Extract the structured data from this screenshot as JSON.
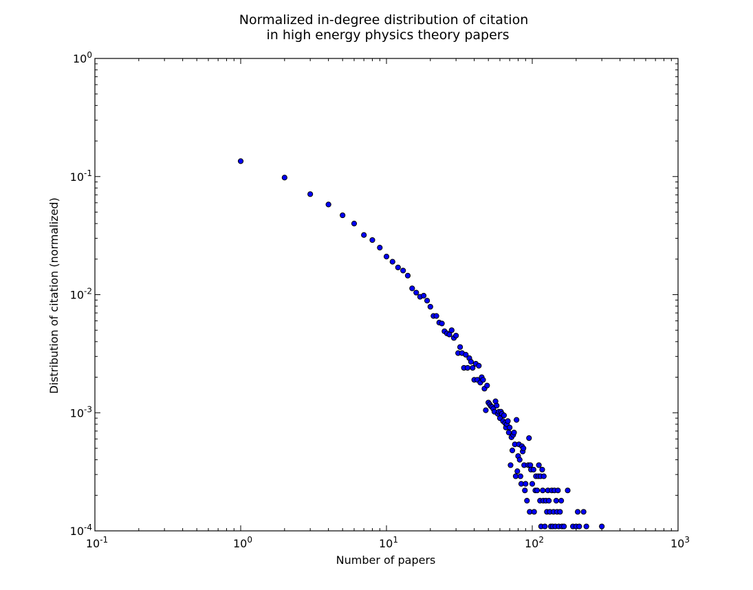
{
  "chart_data": {
    "type": "scatter",
    "title_lines": [
      "Normalized in-degree distribution of citation",
      "in high energy physics theory papers"
    ],
    "xlabel": "Number of papers",
    "ylabel": "Distribution of citation (normalized)",
    "x_scale": "log",
    "y_scale": "log",
    "xlim": [
      0.1,
      1000
    ],
    "ylim": [
      0.0001,
      1
    ],
    "x_ticks": [
      {
        "base": "10",
        "exp": "-1",
        "value": 0.1
      },
      {
        "base": "10",
        "exp": "0",
        "value": 1
      },
      {
        "base": "10",
        "exp": "1",
        "value": 10
      },
      {
        "base": "10",
        "exp": "2",
        "value": 100
      },
      {
        "base": "10",
        "exp": "3",
        "value": 1000
      }
    ],
    "y_ticks": [
      {
        "base": "10",
        "exp": "-4",
        "value": 0.0001
      },
      {
        "base": "10",
        "exp": "-3",
        "value": 0.001
      },
      {
        "base": "10",
        "exp": "-2",
        "value": 0.01
      },
      {
        "base": "10",
        "exp": "-1",
        "value": 0.1
      },
      {
        "base": "10",
        "exp": "0",
        "value": 1
      }
    ],
    "grid": false,
    "marker_color": "#0000ff",
    "marker_edge": "#000000",
    "points": [
      [
        1,
        0.135
      ],
      [
        2,
        0.098
      ],
      [
        3,
        0.071
      ],
      [
        4,
        0.058
      ],
      [
        5,
        0.047
      ],
      [
        6,
        0.04
      ],
      [
        7,
        0.032
      ],
      [
        8,
        0.029
      ],
      [
        9,
        0.025
      ],
      [
        10,
        0.021
      ],
      [
        11,
        0.019
      ],
      [
        12,
        0.017
      ],
      [
        13,
        0.016
      ],
      [
        14,
        0.0145
      ],
      [
        15,
        0.0113
      ],
      [
        16,
        0.0104
      ],
      [
        17,
        0.0096
      ],
      [
        18,
        0.0098
      ],
      [
        19,
        0.0089
      ],
      [
        20,
        0.0079
      ],
      [
        21,
        0.0066
      ],
      [
        22,
        0.0066
      ],
      [
        23,
        0.0058
      ],
      [
        24,
        0.0057
      ],
      [
        25,
        0.0049
      ],
      [
        26,
        0.0047
      ],
      [
        27,
        0.0046
      ],
      [
        28,
        0.005
      ],
      [
        29,
        0.0043
      ],
      [
        30,
        0.0045
      ],
      [
        31,
        0.0032
      ],
      [
        32,
        0.0036
      ],
      [
        33,
        0.0032
      ],
      [
        34,
        0.0024
      ],
      [
        35,
        0.0031
      ],
      [
        36,
        0.0024
      ],
      [
        37,
        0.0029
      ],
      [
        38,
        0.0027
      ],
      [
        39,
        0.0024
      ],
      [
        40,
        0.0019
      ],
      [
        41,
        0.0026
      ],
      [
        42,
        0.0019
      ],
      [
        43,
        0.0025
      ],
      [
        44,
        0.0018
      ],
      [
        45,
        0.002
      ],
      [
        46,
        0.0019
      ],
      [
        47,
        0.0016
      ],
      [
        48,
        0.00105
      ],
      [
        49,
        0.0017
      ],
      [
        50,
        0.00122
      ],
      [
        51,
        0.00118
      ],
      [
        52,
        0.00114
      ],
      [
        53,
        0.00112
      ],
      [
        54,
        0.00108
      ],
      [
        55,
        0.00102
      ],
      [
        56,
        0.00125
      ],
      [
        57,
        0.00115
      ],
      [
        58,
        0.00098
      ],
      [
        59,
        0.00102
      ],
      [
        60,
        0.0009
      ],
      [
        61,
        0.00102
      ],
      [
        62,
        0.00098
      ],
      [
        63,
        0.00085
      ],
      [
        64,
        0.00095
      ],
      [
        65,
        0.00082
      ],
      [
        66,
        0.00075
      ],
      [
        67,
        0.0008
      ],
      [
        68,
        0.00085
      ],
      [
        69,
        0.00068
      ],
      [
        70,
        0.00075
      ],
      [
        71,
        0.00036
      ],
      [
        72,
        0.00062
      ],
      [
        73,
        0.00048
      ],
      [
        74,
        0.00065
      ],
      [
        75,
        0.00068
      ],
      [
        76,
        0.00054
      ],
      [
        77,
        0.00029
      ],
      [
        78,
        0.00087
      ],
      [
        79,
        0.00032
      ],
      [
        80,
        0.00043
      ],
      [
        81,
        0.00054
      ],
      [
        82,
        0.0004
      ],
      [
        83,
        0.00029
      ],
      [
        84,
        0.00025
      ],
      [
        85,
        0.00052
      ],
      [
        86,
        0.00047
      ],
      [
        87,
        0.0005
      ],
      [
        88,
        0.00036
      ],
      [
        89,
        0.00022
      ],
      [
        90,
        0.00025
      ],
      [
        92,
        0.00018
      ],
      [
        94,
        0.00036
      ],
      [
        95,
        0.00061
      ],
      [
        96,
        0.000145
      ],
      [
        97,
        0.00036
      ],
      [
        98,
        0.00033
      ],
      [
        100,
        0.00025
      ],
      [
        102,
        0.00033
      ],
      [
        103,
        0.000145
      ],
      [
        105,
        0.00022
      ],
      [
        106,
        0.00029
      ],
      [
        108,
        0.00022
      ],
      [
        110,
        0.00029
      ],
      [
        111,
        0.00036
      ],
      [
        113,
        0.00018
      ],
      [
        114,
        0.00029
      ],
      [
        115,
        0.000109
      ],
      [
        117,
        0.00033
      ],
      [
        118,
        0.00022
      ],
      [
        119,
        0.00018
      ],
      [
        120,
        0.00029
      ],
      [
        122,
        0.000109
      ],
      [
        124,
        0.00018
      ],
      [
        126,
        0.000145
      ],
      [
        128,
        0.00022
      ],
      [
        130,
        0.00018
      ],
      [
        132,
        0.000145
      ],
      [
        134,
        0.000109
      ],
      [
        136,
        0.00022
      ],
      [
        138,
        0.000109
      ],
      [
        140,
        0.000145
      ],
      [
        142,
        0.00022
      ],
      [
        144,
        0.000109
      ],
      [
        146,
        0.00018
      ],
      [
        148,
        0.000145
      ],
      [
        150,
        0.00022
      ],
      [
        152,
        0.000109
      ],
      [
        155,
        0.000145
      ],
      [
        158,
        0.00018
      ],
      [
        160,
        0.000109
      ],
      [
        165,
        0.000109
      ],
      [
        175,
        0.00022
      ],
      [
        190,
        0.000109
      ],
      [
        200,
        0.000109
      ],
      [
        205,
        0.000145
      ],
      [
        210,
        0.000109
      ],
      [
        225,
        0.000145
      ],
      [
        235,
        0.000109
      ],
      [
        300,
        0.000109
      ]
    ]
  }
}
